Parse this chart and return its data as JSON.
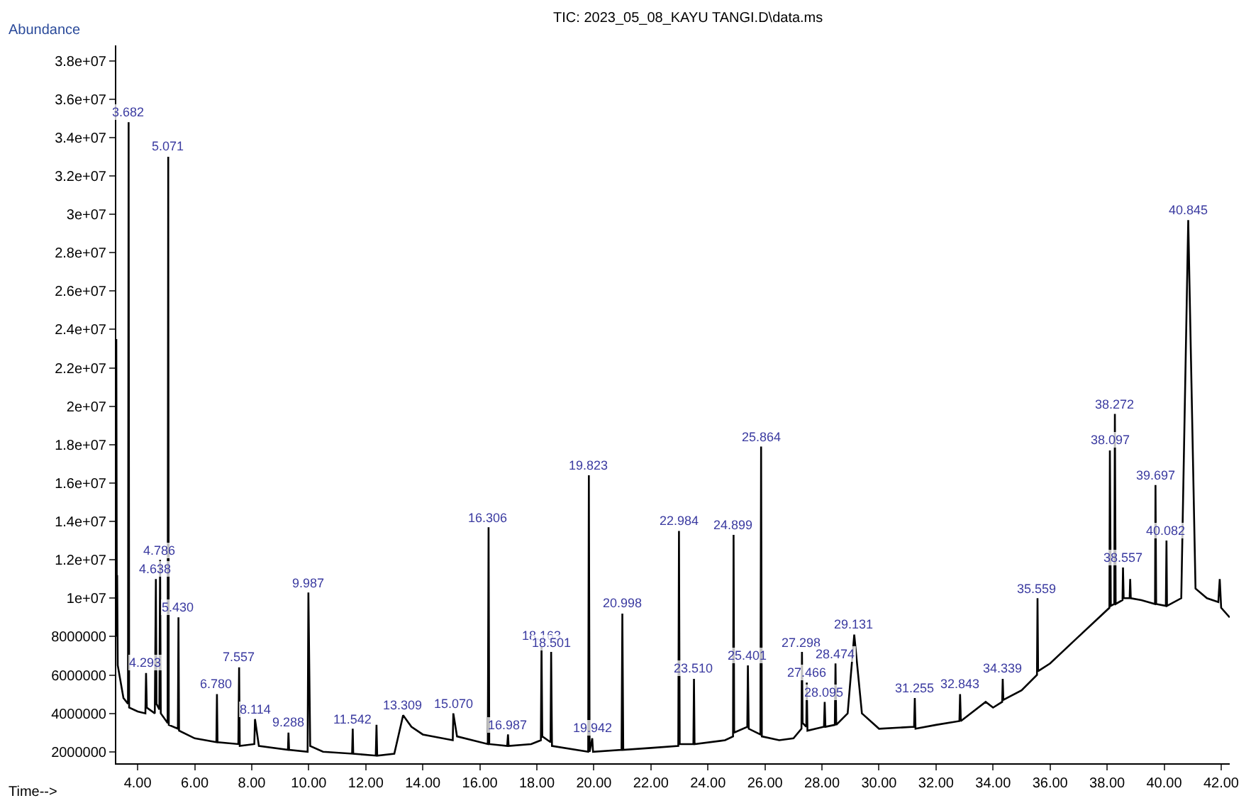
{
  "chart_data": {
    "type": "line",
    "title": "TIC: 2023_05_08_KAYU TANGI.D\\data.ms",
    "xlabel": "Time-->",
    "ylabel": "Abundance",
    "x": [
      3.25,
      3.27,
      3.28,
      3.3,
      3.5,
      3.66,
      3.682,
      3.7,
      4.0,
      4.27,
      4.293,
      4.32,
      4.6,
      4.638,
      4.66,
      4.76,
      4.786,
      4.81,
      5.05,
      5.071,
      5.09,
      5.41,
      5.43,
      5.45,
      6.0,
      6.76,
      6.78,
      6.8,
      7.53,
      7.557,
      7.58,
      8.09,
      8.114,
      8.25,
      9.27,
      9.288,
      9.31,
      9.96,
      9.987,
      10.05,
      10.5,
      11.52,
      11.542,
      11.56,
      12.35,
      12.376,
      12.4,
      13.0,
      13.309,
      13.6,
      14.0,
      15.05,
      15.07,
      15.2,
      16.28,
      16.306,
      16.33,
      16.96,
      16.987,
      17.01,
      17.8,
      18.14,
      18.163,
      18.19,
      18.48,
      18.501,
      18.53,
      19.8,
      19.823,
      19.85,
      19.942,
      19.97,
      20.97,
      20.998,
      21.03,
      22.0,
      22.96,
      22.984,
      23.01,
      23.49,
      23.51,
      23.53,
      24.6,
      24.88,
      24.899,
      24.92,
      25.38,
      25.401,
      25.43,
      25.84,
      25.864,
      25.89,
      26.5,
      27.0,
      27.28,
      27.298,
      27.32,
      27.45,
      27.466,
      27.49,
      28.07,
      28.095,
      28.12,
      28.45,
      28.474,
      28.5,
      28.9,
      29.131,
      29.4,
      30.0,
      31.23,
      31.255,
      31.28,
      32.0,
      32.82,
      32.843,
      32.87,
      33.741,
      34.0,
      34.32,
      34.339,
      34.36,
      35.0,
      35.54,
      35.559,
      35.58,
      36.0,
      37.0,
      38.08,
      38.097,
      38.13,
      38.25,
      38.272,
      38.3,
      38.54,
      38.557,
      38.58,
      38.79,
      38.809,
      38.83,
      39.2,
      39.68,
      39.697,
      39.72,
      40.06,
      40.082,
      40.1,
      40.6,
      40.845,
      41.1,
      41.5,
      41.9,
      41.95,
      42.0,
      42.3
    ],
    "series": [
      {
        "color": "#000000",
        "values": [
          23500000,
          8000000,
          11200000,
          6500000,
          4800000,
          4500000,
          34800000,
          4300000,
          4100000,
          4000000,
          6100000,
          4300000,
          4000000,
          11000000,
          4500000,
          4200000,
          12000000,
          4000000,
          3500000,
          33000000,
          3400000,
          3200000,
          9000000,
          3100000,
          2700000,
          2500000,
          5000000,
          2500000,
          2400000,
          6400000,
          2300000,
          2400000,
          3700000,
          2300000,
          2100000,
          3000000,
          2100000,
          2000000,
          10300000,
          2300000,
          2000000,
          1900000,
          3200000,
          1900000,
          1800000,
          3400000,
          1800000,
          1900000,
          3900000,
          3300000,
          2900000,
          2600000,
          4000000,
          2800000,
          2400000,
          13700000,
          2400000,
          2300000,
          2900000,
          2300000,
          2400000,
          2600000,
          7500000,
          2800000,
          2500000,
          7200000,
          2300000,
          2000000,
          16400000,
          2000000,
          2700000,
          2000000,
          2100000,
          9200000,
          2100000,
          2200000,
          2300000,
          13500000,
          2400000,
          2400000,
          5800000,
          2400000,
          2600000,
          2800000,
          13300000,
          3000000,
          3300000,
          6500000,
          3200000,
          2900000,
          17900000,
          2800000,
          2600000,
          2700000,
          3200000,
          7200000,
          3500000,
          3300000,
          5600000,
          3100000,
          3300000,
          4600000,
          3300000,
          3400000,
          6600000,
          3400000,
          4000000,
          8100000,
          4000000,
          3200000,
          3300000,
          4800000,
          3200000,
          3400000,
          3600000,
          5000000,
          3600000,
          4600000,
          4300000,
          4600000,
          5800000,
          4700000,
          5200000,
          6000000,
          10000000,
          6200000,
          6600000,
          8000000,
          9500000,
          17700000,
          9600000,
          9700000,
          19600000,
          9700000,
          9900000,
          11600000,
          10000000,
          10000000,
          11000000,
          10000000,
          9900000,
          9700000,
          15900000,
          9700000,
          9600000,
          13000000,
          9600000,
          10000000,
          29700000,
          10500000,
          10000000,
          9800000,
          11000000,
          9500000,
          9000000
        ]
      }
    ],
    "annotations": [
      {
        "text": "3.682",
        "x": 3.682,
        "y": 34800000
      },
      {
        "text": "4.293",
        "x": 4.293,
        "y": 6100000
      },
      {
        "text": "4.638",
        "x": 4.638,
        "y": 11000000
      },
      {
        "text": "4.786",
        "x": 4.786,
        "y": 12000000
      },
      {
        "text": "5.071",
        "x": 5.071,
        "y": 33000000
      },
      {
        "text": "5.430",
        "x": 5.43,
        "y": 9000000
      },
      {
        "text": "6.780",
        "x": 6.78,
        "y": 5000000
      },
      {
        "text": "7.557",
        "x": 7.557,
        "y": 6400000
      },
      {
        "text": "8.114",
        "x": 8.114,
        "y": 3700000
      },
      {
        "text": "9.288",
        "x": 9.288,
        "y": 3000000
      },
      {
        "text": "9.987",
        "x": 9.987,
        "y": 10300000
      },
      {
        "text": "11.542",
        "x": 11.542,
        "y": 3200000
      },
      {
        "text": "13.309",
        "x": 13.309,
        "y": 3900000
      },
      {
        "text": "15.070",
        "x": 15.07,
        "y": 4000000
      },
      {
        "text": "16.306",
        "x": 16.306,
        "y": 13700000
      },
      {
        "text": "16.987",
        "x": 16.987,
        "y": 2900000
      },
      {
        "text": "18.163",
        "x": 18.163,
        "y": 7500000
      },
      {
        "text": "18.501",
        "x": 18.501,
        "y": 7200000
      },
      {
        "text": "19.823",
        "x": 19.823,
        "y": 16400000
      },
      {
        "text": "19.942",
        "x": 19.942,
        "y": 2700000
      },
      {
        "text": "20.998",
        "x": 20.998,
        "y": 9200000
      },
      {
        "text": "22.984",
        "x": 22.984,
        "y": 13500000
      },
      {
        "text": "23.510",
        "x": 23.51,
        "y": 5800000
      },
      {
        "text": "24.899",
        "x": 24.899,
        "y": 13300000
      },
      {
        "text": "25.401",
        "x": 25.401,
        "y": 6500000
      },
      {
        "text": "25.864",
        "x": 25.864,
        "y": 17900000
      },
      {
        "text": "27.298",
        "x": 27.298,
        "y": 7200000
      },
      {
        "text": "27.466",
        "x": 27.466,
        "y": 5600000
      },
      {
        "text": "28.095",
        "x": 28.095,
        "y": 4600000
      },
      {
        "text": "28.474",
        "x": 28.474,
        "y": 6600000
      },
      {
        "text": "29.131",
        "x": 29.131,
        "y": 8100000
      },
      {
        "text": "31.255",
        "x": 31.255,
        "y": 4800000
      },
      {
        "text": "32.843",
        "x": 32.843,
        "y": 5000000
      },
      {
        "text": "34.339",
        "x": 34.339,
        "y": 5800000
      },
      {
        "text": "35.559",
        "x": 35.559,
        "y": 10000000
      },
      {
        "text": "38.097",
        "x": 38.097,
        "y": 17700000
      },
      {
        "text": "38.272",
        "x": 38.272,
        "y": 19600000
      },
      {
        "text": "38.557",
        "x": 38.557,
        "y": 11600000
      },
      {
        "text": "39.697",
        "x": 39.697,
        "y": 15900000
      },
      {
        "text": "40.082",
        "x": 40.082,
        "y": 13000000
      },
      {
        "text": "40.845",
        "x": 40.845,
        "y": 29700000
      }
    ],
    "xlim": [
      3.25,
      42.3
    ],
    "ylim": [
      1400000,
      38800000
    ],
    "xticks": [
      {
        "value": 4,
        "label": "4.00"
      },
      {
        "value": 6,
        "label": "6.00"
      },
      {
        "value": 8,
        "label": "8.00"
      },
      {
        "value": 10,
        "label": "10.00"
      },
      {
        "value": 12,
        "label": "12.00"
      },
      {
        "value": 14,
        "label": "14.00"
      },
      {
        "value": 16,
        "label": "16.00"
      },
      {
        "value": 18,
        "label": "18.00"
      },
      {
        "value": 20,
        "label": "20.00"
      },
      {
        "value": 22,
        "label": "22.00"
      },
      {
        "value": 24,
        "label": "24.00"
      },
      {
        "value": 26,
        "label": "26.00"
      },
      {
        "value": 28,
        "label": "28.00"
      },
      {
        "value": 30,
        "label": "30.00"
      },
      {
        "value": 32,
        "label": "32.00"
      },
      {
        "value": 34,
        "label": "34.00"
      },
      {
        "value": 36,
        "label": "36.00"
      },
      {
        "value": 38,
        "label": "38.00"
      },
      {
        "value": 40,
        "label": "40.00"
      },
      {
        "value": 42,
        "label": "42.00"
      }
    ],
    "yticks": [
      2000000,
      4000000,
      6000000,
      8000000,
      {
        "value": 10000000,
        "label": "1e+07"
      },
      {
        "value": 12000000,
        "label": "1.2e+07"
      },
      {
        "value": 14000000,
        "label": "1.4e+07"
      },
      {
        "value": 16000000,
        "label": "1.6e+07"
      },
      {
        "value": 18000000,
        "label": "1.8e+07"
      },
      {
        "value": 20000000,
        "label": "2e+07"
      },
      {
        "value": 22000000,
        "label": "2.2e+07"
      },
      {
        "value": 24000000,
        "label": "2.4e+07"
      },
      {
        "value": 26000000,
        "label": "2.6e+07"
      },
      {
        "value": 28000000,
        "label": "2.8e+07"
      },
      {
        "value": 30000000,
        "label": "3e+07"
      },
      {
        "value": 32000000,
        "label": "3.2e+07"
      },
      {
        "value": 34000000,
        "label": "3.4e+07"
      },
      {
        "value": 36000000,
        "label": "3.6e+07"
      },
      {
        "value": 38000000,
        "label": "3.8e+07"
      }
    ],
    "marker": "none",
    "line_style": "solid"
  }
}
